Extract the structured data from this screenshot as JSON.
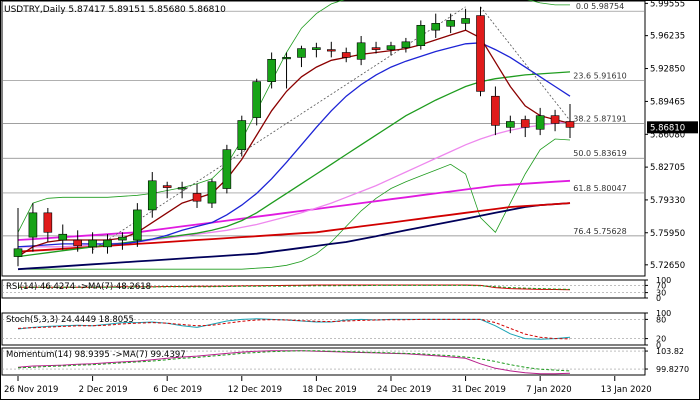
{
  "header": {
    "title": "USDTRY,Daily  5.87417 5.89151 5.85680 5.86810"
  },
  "colors": {
    "bull": "#17a317",
    "bear": "#e01b1b",
    "ma_darkred": "#8b0000",
    "ma_blue": "#1d24d6",
    "ma_green": "#1f9c1f",
    "ma_magenta": "#e01be0",
    "ma_red": "#d10000",
    "ma_navy": "#00005a",
    "bollinger": "#1f9c1f",
    "pink_line": "#ee88ee",
    "fib": "#808080"
  },
  "chart_data": [
    {
      "type": "candlestick",
      "title": "USDTRY,Daily",
      "ohlc_header": [
        "5.87417",
        "5.89151",
        "5.85680",
        "5.86810"
      ],
      "last_price_label": "5.86810",
      "ylim": [
        5.715,
        5.998
      ],
      "yticks": [
        "5.99555",
        "5.96235",
        "5.92850",
        "5.89465",
        "5.86080",
        "5.82705",
        "5.79330",
        "5.75950",
        "5.72650"
      ],
      "xticks": [
        "26 Nov 2019",
        "2 Dec 2019",
        "6 Dec 2019",
        "12 Dec 2019",
        "18 Dec 2019",
        "24 Dec 2019",
        "31 Dec 2019",
        "7 Jan 2020",
        "13 Jan 2020"
      ],
      "xtick_candle_index": [
        0,
        5,
        10,
        15,
        20,
        25,
        30,
        35,
        40
      ],
      "candles": [
        {
          "o": 5.735,
          "h": 5.785,
          "l": 5.725,
          "c": 5.743
        },
        {
          "o": 5.755,
          "h": 5.79,
          "l": 5.74,
          "c": 5.78
        },
        {
          "o": 5.78,
          "h": 5.785,
          "l": 5.75,
          "c": 5.76
        },
        {
          "o": 5.752,
          "h": 5.768,
          "l": 5.742,
          "c": 5.758
        },
        {
          "o": 5.752,
          "h": 5.762,
          "l": 5.74,
          "c": 5.746
        },
        {
          "o": 5.745,
          "h": 5.76,
          "l": 5.738,
          "c": 5.752
        },
        {
          "o": 5.745,
          "h": 5.758,
          "l": 5.738,
          "c": 5.752
        },
        {
          "o": 5.752,
          "h": 5.76,
          "l": 5.742,
          "c": 5.755
        },
        {
          "o": 5.752,
          "h": 5.79,
          "l": 5.745,
          "c": 5.783
        },
        {
          "o": 5.783,
          "h": 5.822,
          "l": 5.775,
          "c": 5.813
        },
        {
          "o": 5.808,
          "h": 5.812,
          "l": 5.795,
          "c": 5.806
        },
        {
          "o": 5.806,
          "h": 5.812,
          "l": 5.795,
          "c": 5.806
        },
        {
          "o": 5.8,
          "h": 5.81,
          "l": 5.785,
          "c": 5.792
        },
        {
          "o": 5.79,
          "h": 5.815,
          "l": 5.785,
          "c": 5.812
        },
        {
          "o": 5.805,
          "h": 5.85,
          "l": 5.8,
          "c": 5.845
        },
        {
          "o": 5.845,
          "h": 5.88,
          "l": 5.838,
          "c": 5.875
        },
        {
          "o": 5.878,
          "h": 5.918,
          "l": 5.87,
          "c": 5.915
        },
        {
          "o": 5.915,
          "h": 5.945,
          "l": 5.908,
          "c": 5.938
        },
        {
          "o": 5.94,
          "h": 5.945,
          "l": 5.908,
          "c": 5.94
        },
        {
          "o": 5.94,
          "h": 5.952,
          "l": 5.93,
          "c": 5.949
        },
        {
          "o": 5.948,
          "h": 5.955,
          "l": 5.94,
          "c": 5.95
        },
        {
          "o": 5.948,
          "h": 5.956,
          "l": 5.94,
          "c": 5.947
        },
        {
          "o": 5.945,
          "h": 5.95,
          "l": 5.935,
          "c": 5.94
        },
        {
          "o": 5.938,
          "h": 5.962,
          "l": 5.932,
          "c": 5.955
        },
        {
          "o": 5.95,
          "h": 5.956,
          "l": 5.944,
          "c": 5.948
        },
        {
          "o": 5.948,
          "h": 5.956,
          "l": 5.942,
          "c": 5.952
        },
        {
          "o": 5.95,
          "h": 5.96,
          "l": 5.945,
          "c": 5.956
        },
        {
          "o": 5.952,
          "h": 5.978,
          "l": 5.948,
          "c": 5.973
        },
        {
          "o": 5.968,
          "h": 5.985,
          "l": 5.96,
          "c": 5.975
        },
        {
          "o": 5.972,
          "h": 5.985,
          "l": 5.965,
          "c": 5.978
        },
        {
          "o": 5.975,
          "h": 5.99,
          "l": 5.968,
          "c": 5.98
        },
        {
          "o": 5.983,
          "h": 5.992,
          "l": 5.9,
          "c": 5.905
        },
        {
          "o": 5.9,
          "h": 5.91,
          "l": 5.86,
          "c": 5.87
        },
        {
          "o": 5.868,
          "h": 5.88,
          "l": 5.862,
          "c": 5.874
        },
        {
          "o": 5.876,
          "h": 5.88,
          "l": 5.858,
          "c": 5.868
        },
        {
          "o": 5.866,
          "h": 5.888,
          "l": 5.86,
          "c": 5.88
        },
        {
          "o": 5.88,
          "h": 5.886,
          "l": 5.864,
          "c": 5.872
        },
        {
          "o": 5.874,
          "h": 5.892,
          "l": 5.857,
          "c": 5.868
        }
      ],
      "fib_levels": [
        {
          "label": "0.0 5.98754",
          "value": 5.98754
        },
        {
          "label": "23.6 5.91610",
          "value": 5.9161
        },
        {
          "label": "38.2 5.87191",
          "value": 5.87191
        },
        {
          "label": "50.0 5.83619",
          "value": 5.83619
        },
        {
          "label": "61.8 5.80047",
          "value": 5.80047
        },
        {
          "label": "76.4 5.75628",
          "value": 5.75628
        }
      ],
      "moving_averages": [
        {
          "color_key": "ma_darkred",
          "values": [
            5.735,
            5.745,
            5.75,
            5.752,
            5.752,
            5.752,
            5.752,
            5.754,
            5.76,
            5.77,
            5.78,
            5.79,
            5.795,
            5.8,
            5.815,
            5.835,
            5.86,
            5.885,
            5.905,
            5.92,
            5.93,
            5.937,
            5.94,
            5.943,
            5.945,
            5.947,
            5.949,
            5.953,
            5.958,
            5.963,
            5.968,
            5.96,
            5.935,
            5.91,
            5.89,
            5.88,
            5.876,
            5.872
          ]
        },
        {
          "color_key": "ma_blue",
          "values": [
            5.745,
            5.746,
            5.747,
            5.748,
            5.748,
            5.748,
            5.748,
            5.748,
            5.75,
            5.753,
            5.757,
            5.762,
            5.766,
            5.77,
            5.778,
            5.788,
            5.8,
            5.815,
            5.832,
            5.85,
            5.868,
            5.885,
            5.9,
            5.912,
            5.922,
            5.93,
            5.936,
            5.941,
            5.946,
            5.95,
            5.954,
            5.955,
            5.948,
            5.94,
            5.93,
            5.92,
            5.91,
            5.9
          ]
        },
        {
          "color_key": "ma_green",
          "values": [
            5.735,
            5.737,
            5.739,
            5.741,
            5.743,
            5.745,
            5.747,
            5.749,
            5.751,
            5.753,
            5.755,
            5.757,
            5.759,
            5.762,
            5.766,
            5.772,
            5.78,
            5.79,
            5.8,
            5.81,
            5.82,
            5.83,
            5.84,
            5.85,
            5.86,
            5.87,
            5.88,
            5.888,
            5.896,
            5.903,
            5.91,
            5.915,
            5.918,
            5.92,
            5.922,
            5.923,
            5.924,
            5.925
          ]
        },
        {
          "color_key": "pink_line",
          "values": [
            5.745,
            5.745,
            5.745,
            5.745,
            5.746,
            5.747,
            5.748,
            5.749,
            5.75,
            5.752,
            5.754,
            5.756,
            5.758,
            5.76,
            5.762,
            5.765,
            5.768,
            5.772,
            5.776,
            5.78,
            5.785,
            5.79,
            5.796,
            5.802,
            5.808,
            5.815,
            5.822,
            5.829,
            5.836,
            5.843,
            5.85,
            5.856,
            5.861,
            5.865,
            5.868,
            5.87,
            5.872,
            5.874
          ]
        },
        {
          "color_key": "ma_magenta",
          "values": [
            5.752,
            5.753,
            5.754,
            5.755,
            5.756,
            5.757,
            5.758,
            5.759,
            5.76,
            5.762,
            5.764,
            5.766,
            5.768,
            5.77,
            5.772,
            5.774,
            5.776,
            5.778,
            5.78,
            5.782,
            5.784,
            5.786,
            5.788,
            5.79,
            5.792,
            5.794,
            5.796,
            5.798,
            5.8,
            5.802,
            5.804,
            5.806,
            5.808,
            5.809,
            5.81,
            5.811,
            5.812,
            5.813
          ]
        },
        {
          "color_key": "ma_red",
          "values": [
            5.74,
            5.741,
            5.742,
            5.743,
            5.744,
            5.745,
            5.746,
            5.747,
            5.748,
            5.749,
            5.75,
            5.751,
            5.752,
            5.753,
            5.754,
            5.755,
            5.756,
            5.757,
            5.758,
            5.759,
            5.76,
            5.762,
            5.764,
            5.766,
            5.768,
            5.77,
            5.772,
            5.774,
            5.776,
            5.778,
            5.78,
            5.782,
            5.784,
            5.786,
            5.787,
            5.788,
            5.789,
            5.79
          ]
        },
        {
          "color_key": "ma_navy",
          "values": [
            5.722,
            5.723,
            5.724,
            5.725,
            5.726,
            5.727,
            5.728,
            5.729,
            5.73,
            5.731,
            5.732,
            5.733,
            5.734,
            5.735,
            5.736,
            5.737,
            5.738,
            5.74,
            5.742,
            5.744,
            5.746,
            5.748,
            5.75,
            5.753,
            5.756,
            5.759,
            5.762,
            5.765,
            5.768,
            5.771,
            5.774,
            5.777,
            5.78,
            5.783,
            5.786,
            5.788,
            5.789,
            5.79
          ]
        }
      ],
      "bollinger": {
        "upper": [
          5.76,
          5.79,
          5.795,
          5.796,
          5.796,
          5.796,
          5.796,
          5.797,
          5.798,
          5.8,
          5.803,
          5.806,
          5.81,
          5.815,
          5.83,
          5.855,
          5.885,
          5.915,
          5.945,
          5.97,
          5.985,
          5.995,
          6.0,
          6.005,
          6.01,
          6.012,
          6.012,
          6.012,
          6.012,
          6.012,
          6.012,
          6.012,
          6.008,
          6.004,
          6.0,
          5.996,
          5.994,
          5.994
        ],
        "lower": [
          5.722,
          5.722,
          5.722,
          5.722,
          5.722,
          5.722,
          5.722,
          5.722,
          5.722,
          5.722,
          5.722,
          5.722,
          5.722,
          5.722,
          5.722,
          5.722,
          5.723,
          5.724,
          5.726,
          5.73,
          5.738,
          5.75,
          5.766,
          5.782,
          5.795,
          5.805,
          5.812,
          5.818,
          5.824,
          5.83,
          5.82,
          5.775,
          5.76,
          5.79,
          5.82,
          5.845,
          5.856,
          5.855
        ]
      },
      "annotations": [
        {
          "kind": "dotted-trendline",
          "from": [
            5,
            5.742
          ],
          "to": [
            30,
            5.992
          ]
        },
        {
          "kind": "dotted-trendline",
          "from": [
            31,
            5.992
          ],
          "to": [
            37,
            5.875
          ]
        }
      ]
    },
    {
      "type": "line",
      "title": "RSI(14) 46.4274  ->MA(7) 48.2618",
      "ylim": [
        0,
        100
      ],
      "yticks": [
        "100",
        "70",
        "30",
        "0"
      ],
      "series": [
        {
          "name": "RSI(14)",
          "color": "#d10000",
          "values": [
            60,
            60,
            60,
            60,
            60,
            60,
            61,
            62,
            62,
            63,
            64,
            64,
            65,
            65,
            66,
            67,
            68,
            69,
            70,
            71,
            72,
            72,
            72,
            72,
            72,
            72,
            72,
            72,
            72,
            72,
            72,
            70,
            58,
            52,
            50,
            48,
            47,
            46
          ]
        },
        {
          "name": "MA(7)",
          "color": "#1f9c1f",
          "values": [
            60,
            60,
            60,
            60,
            60,
            60,
            60,
            60,
            61,
            61,
            62,
            62,
            63,
            63,
            64,
            65,
            65,
            66,
            66,
            67,
            68,
            68,
            69,
            69,
            70,
            70,
            70,
            70,
            70,
            70,
            70,
            68,
            63,
            58,
            55,
            52,
            50,
            48
          ]
        }
      ]
    },
    {
      "type": "line",
      "title": "Stoch(5,3,3) 24.4449 18.8055",
      "ylim": [
        0,
        100
      ],
      "yticks": [
        "100",
        "80",
        "20",
        "0"
      ],
      "series": [
        {
          "name": "Stoch(5,3,3)",
          "color": "#1aa3b5",
          "values": [
            50,
            55,
            58,
            60,
            62,
            60,
            65,
            70,
            70,
            72,
            68,
            60,
            55,
            65,
            75,
            80,
            82,
            80,
            78,
            75,
            72,
            72,
            78,
            80,
            78,
            80,
            80,
            80,
            80,
            80,
            80,
            80,
            60,
            35,
            20,
            18,
            20,
            24
          ]
        },
        {
          "name": "Signal",
          "color": "#d10000",
          "values": [
            52,
            54,
            56,
            58,
            60,
            60,
            62,
            66,
            68,
            70,
            68,
            64,
            60,
            62,
            68,
            74,
            78,
            79,
            78,
            76,
            74,
            73,
            75,
            77,
            78,
            79,
            79,
            80,
            80,
            80,
            80,
            80,
            70,
            52,
            34,
            24,
            20,
            19
          ]
        }
      ]
    },
    {
      "type": "line",
      "title": "Momentum(14) 98.9395  ->MA(7) 99.4397",
      "ylim": [
        98.5,
        104.5
      ],
      "yticks": [
        "103.82",
        "99.8270"
      ],
      "series": [
        {
          "name": "Momentum(14)",
          "color": "#b8208c",
          "values": [
            100.2,
            100.5,
            100.6,
            100.7,
            100.9,
            101.0,
            101.2,
            101.4,
            101.6,
            101.9,
            102.2,
            102.5,
            102.7,
            103.0,
            103.3,
            103.6,
            103.8,
            103.9,
            103.9,
            103.9,
            103.8,
            103.7,
            103.6,
            103.5,
            103.4,
            103.3,
            103.2,
            103.0,
            102.8,
            102.5,
            102.2,
            101.0,
            100.0,
            99.4,
            99.0,
            98.8,
            98.8,
            98.9
          ]
        },
        {
          "name": "MA(7)",
          "color": "#1f9c1f",
          "values": [
            100.1,
            100.2,
            100.4,
            100.5,
            100.7,
            100.8,
            101.0,
            101.2,
            101.4,
            101.6,
            101.9,
            102.2,
            102.4,
            102.7,
            103.0,
            103.3,
            103.5,
            103.7,
            103.8,
            103.9,
            103.9,
            103.8,
            103.7,
            103.6,
            103.5,
            103.4,
            103.3,
            103.2,
            103.0,
            102.8,
            102.5,
            102.1,
            101.5,
            100.8,
            100.2,
            99.8,
            99.6,
            99.4
          ]
        }
      ]
    }
  ]
}
